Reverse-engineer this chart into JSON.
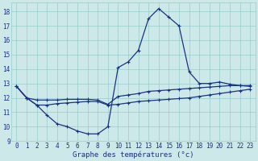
{
  "title": "Graphe des températures (°c)",
  "background_color": "#cce8e8",
  "grid_color": "#99cccc",
  "line_color": "#1a3380",
  "xlim_min": -0.5,
  "xlim_max": 23.5,
  "ylim_min": 9,
  "ylim_max": 18.6,
  "yticks": [
    9,
    10,
    11,
    12,
    13,
    14,
    15,
    16,
    17,
    18
  ],
  "xticks": [
    0,
    1,
    2,
    3,
    4,
    5,
    6,
    7,
    8,
    9,
    10,
    11,
    12,
    13,
    14,
    15,
    16,
    17,
    18,
    19,
    20,
    21,
    22,
    23
  ],
  "hours": [
    0,
    1,
    2,
    3,
    4,
    5,
    6,
    7,
    8,
    9,
    10,
    11,
    12,
    13,
    14,
    15,
    16,
    17,
    18,
    19,
    20,
    21,
    22,
    23
  ],
  "line_max": [
    12.8,
    12.0,
    11.5,
    10.8,
    10.2,
    10.0,
    9.7,
    9.5,
    9.5,
    10.0,
    14.1,
    14.5,
    15.3,
    17.5,
    18.2,
    17.6,
    17.0,
    13.8,
    13.0,
    13.0,
    13.1,
    12.95,
    12.85,
    12.8
  ],
  "line_mean": [
    12.8,
    12.0,
    11.85,
    11.85,
    11.85,
    11.9,
    11.9,
    11.9,
    11.85,
    11.55,
    12.1,
    12.2,
    12.3,
    12.45,
    12.5,
    12.55,
    12.6,
    12.65,
    12.7,
    12.75,
    12.8,
    12.85,
    12.85,
    12.85
  ],
  "line_min": [
    12.8,
    12.0,
    11.5,
    11.5,
    11.6,
    11.65,
    11.7,
    11.75,
    11.75,
    11.5,
    11.55,
    11.65,
    11.75,
    11.8,
    11.85,
    11.9,
    11.95,
    12.0,
    12.1,
    12.2,
    12.3,
    12.4,
    12.5,
    12.6
  ],
  "tick_fontsize": 5.5,
  "xlabel_fontsize": 6.5
}
